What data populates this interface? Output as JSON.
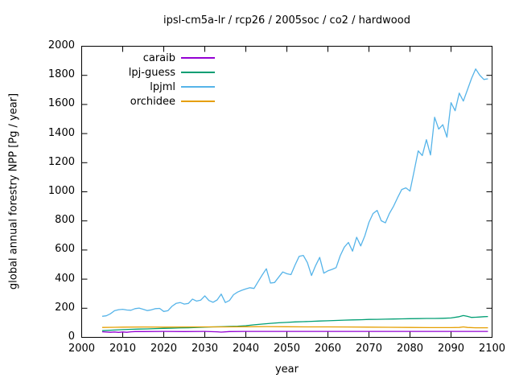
{
  "chart_data": {
    "type": "line",
    "title": "ipsl-cm5a-lr / rcp26 / 2005soc / co2 / hardwood",
    "xlabel": "year",
    "ylabel": "global annual forestry NPP [Pg / year]",
    "xlim": [
      2000,
      2100
    ],
    "ylim": [
      0,
      2000
    ],
    "xticks": [
      2000,
      2010,
      2020,
      2030,
      2040,
      2050,
      2060,
      2070,
      2080,
      2090,
      2100
    ],
    "yticks": [
      0,
      200,
      400,
      600,
      800,
      1000,
      1200,
      1400,
      1600,
      1800,
      2000
    ],
    "grid": false,
    "axis_color": "#000000",
    "background": "#ffffff",
    "legend": {
      "position": "top-left-inside"
    },
    "series": [
      {
        "name": "caraib",
        "color": "#9400d3",
        "x": [
          2005,
          2007,
          2008,
          2009,
          2010,
          2011,
          2012,
          2013,
          2015,
          2020,
          2025,
          2030,
          2033,
          2034,
          2036,
          2040,
          2050,
          2060,
          2070,
          2080,
          2090,
          2099
        ],
        "values": [
          38,
          35,
          37,
          34,
          37,
          35,
          38,
          40,
          40,
          41,
          40,
          41,
          38,
          36,
          40,
          41,
          41,
          41,
          41,
          41,
          41,
          41
        ]
      },
      {
        "name": "lpj-guess",
        "color": "#009e73",
        "x": [
          2005,
          2008,
          2010,
          2012,
          2014,
          2016,
          2018,
          2020,
          2022,
          2024,
          2026,
          2028,
          2030,
          2032,
          2034,
          2036,
          2038,
          2040,
          2042,
          2044,
          2046,
          2048,
          2050,
          2052,
          2054,
          2056,
          2058,
          2060,
          2062,
          2064,
          2066,
          2068,
          2070,
          2072,
          2074,
          2076,
          2078,
          2080,
          2082,
          2084,
          2086,
          2088,
          2090,
          2092,
          2093,
          2094,
          2095,
          2096,
          2097,
          2098,
          2099
        ],
        "values": [
          46,
          50,
          53,
          55,
          57,
          58,
          60,
          62,
          63,
          65,
          66,
          68,
          70,
          72,
          73,
          75,
          77,
          80,
          86,
          91,
          96,
          100,
          103,
          106,
          108,
          110,
          112,
          114,
          116,
          118,
          120,
          121,
          123,
          124,
          125,
          126,
          127,
          128,
          129,
          130,
          130,
          131,
          133,
          142,
          150,
          144,
          137,
          138,
          140,
          142,
          143
        ]
      },
      {
        "name": "lpjml",
        "color": "#56b4e9",
        "x_first": 2005,
        "values": [
          145,
          148,
          162,
          183,
          190,
          193,
          188,
          186,
          197,
          201,
          193,
          184,
          189,
          197,
          199,
          178,
          183,
          213,
          233,
          239,
          229,
          233,
          263,
          249,
          255,
          285,
          253,
          241,
          257,
          297,
          239,
          253,
          293,
          311,
          323,
          333,
          341,
          336,
          383,
          429,
          471,
          373,
          377,
          413,
          449,
          437,
          431,
          497,
          557,
          563,
          513,
          425,
          493,
          549,
          441,
          457,
          467,
          479,
          561,
          620,
          652,
          592,
          688,
          628,
          698,
          790,
          851,
          872,
          801,
          787,
          852,
          901,
          961,
          1016,
          1027,
          1005,
          1141,
          1281,
          1249,
          1358,
          1253,
          1512,
          1431,
          1461,
          1375,
          1612,
          1557,
          1678,
          1623,
          1701,
          1779,
          1844,
          1801,
          1772,
          1776
        ]
      },
      {
        "name": "orchidee",
        "color": "#e69f00",
        "x": [
          2005,
          2008,
          2010,
          2015,
          2020,
          2025,
          2030,
          2035,
          2040,
          2045,
          2050,
          2055,
          2060,
          2065,
          2070,
          2075,
          2080,
          2085,
          2088,
          2090,
          2092,
          2093,
          2094,
          2096,
          2099
        ],
        "values": [
          68,
          69,
          70,
          71,
          70,
          71,
          72,
          72,
          73,
          74,
          73,
          72,
          72,
          71,
          70,
          69,
          68,
          67,
          67,
          67,
          68,
          72,
          68,
          66,
          66
        ]
      }
    ]
  }
}
